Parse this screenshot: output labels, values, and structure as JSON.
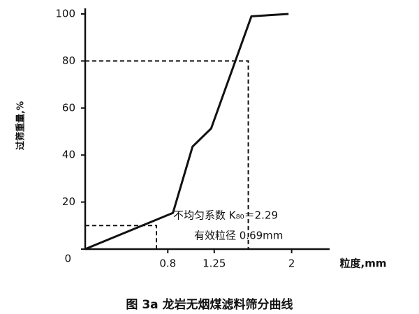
{
  "chart_data": {
    "type": "line",
    "title": "图 3a   龙岩无烟煤滤料筛分曲线",
    "ylabel": "过筛重量,%",
    "xlabel": "粒度,mm",
    "annotations": [
      "不均匀系数 K₈₀＝2.29",
      "有效粒径 0.69mm"
    ],
    "x": [
      0,
      0.85,
      1.04,
      1.22,
      1.61,
      1.97
    ],
    "series": [
      {
        "color": "#111111",
        "values": [
          0,
          15.4,
          43.6,
          51.3,
          99,
          100
        ]
      }
    ],
    "guides": [
      {
        "x": 0.69,
        "y": 10
      },
      {
        "x": 1.58,
        "y": 80
      }
    ],
    "xlim": [
      0,
      2.3
    ],
    "ylim": [
      0,
      100
    ],
    "xticks": [
      0.8,
      1.25,
      2.0
    ],
    "yticks": [
      0,
      20,
      40,
      60,
      80,
      100
    ]
  }
}
